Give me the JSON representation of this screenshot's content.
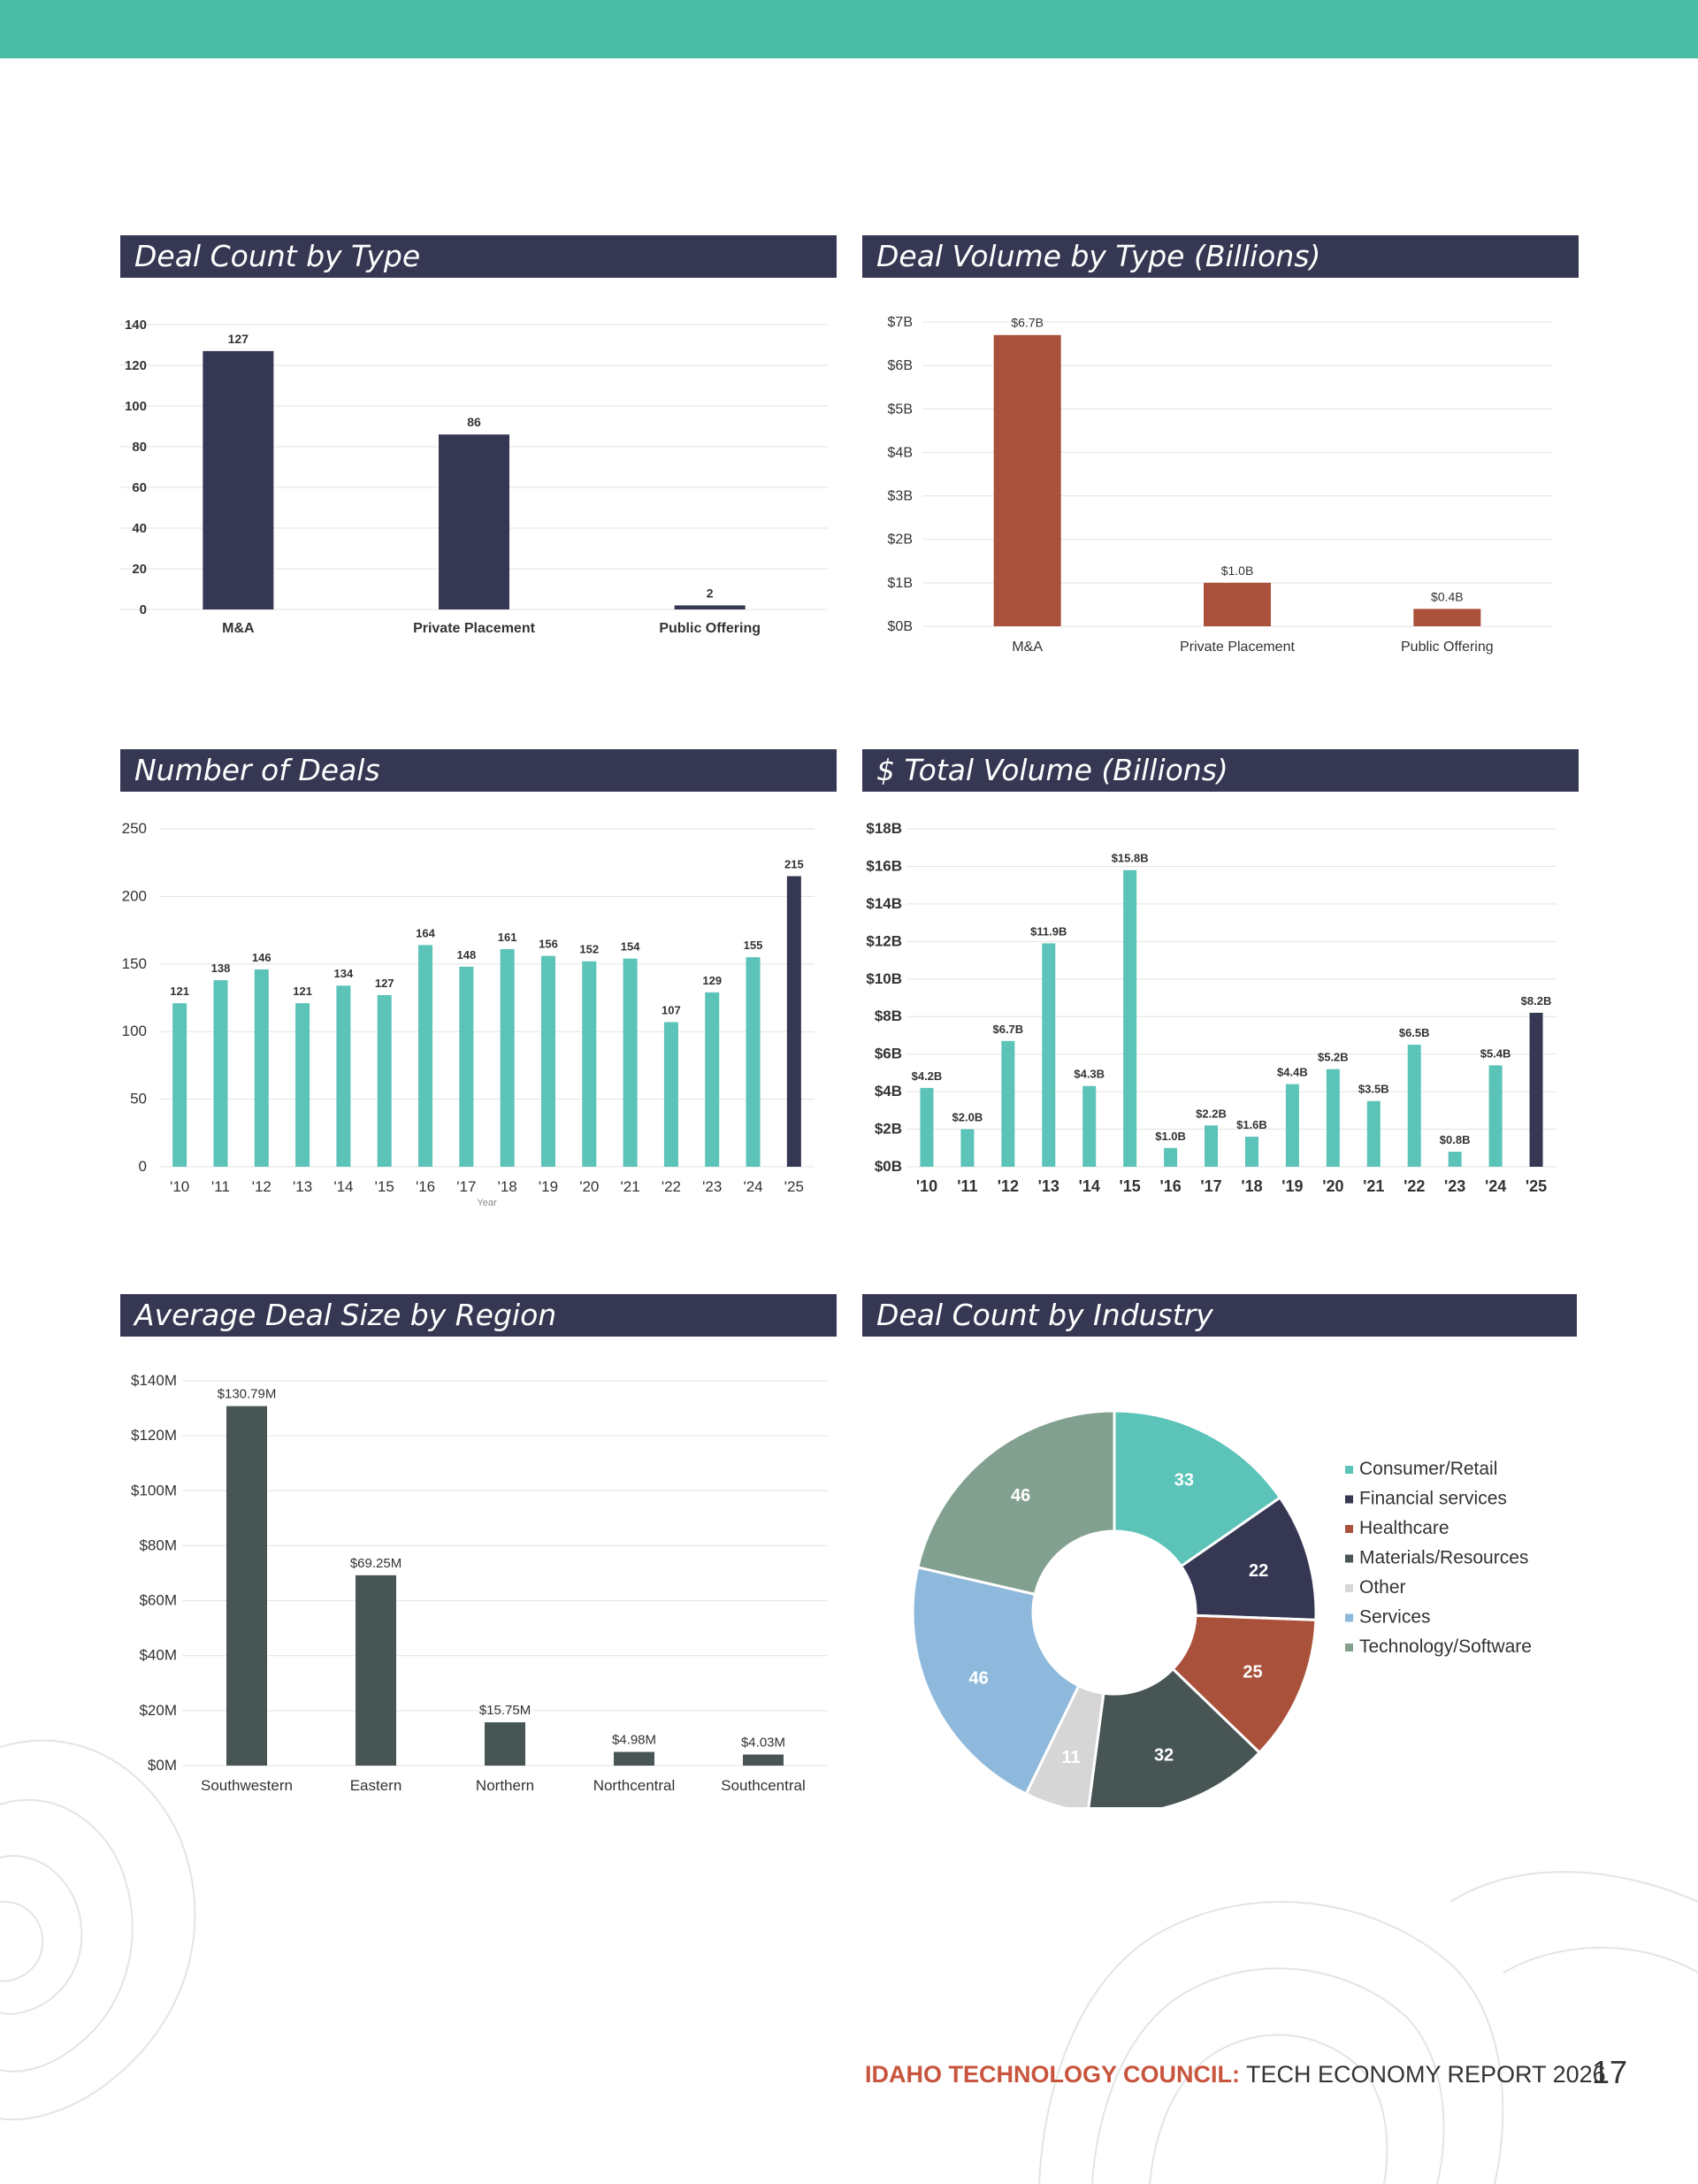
{
  "colors": {
    "teal": "#5bc3b8",
    "navy": "#363853",
    "rust": "#a9513a",
    "slate": "#485555",
    "band": "#4bbfa6"
  },
  "footer": {
    "brand": "IDAHO TECHNOLOGY COUNCIL:",
    "title": "TECH ECONOMY REPORT 2026",
    "page": "17"
  },
  "panels": {
    "deal_count_type": "Deal Count by Type",
    "deal_volume_type": "Deal Volume by Type (Billions)",
    "number_of_deals": "Number of Deals",
    "total_volume": "$ Total Volume (Billions)",
    "avg_deal_size": "Average Deal Size by Region",
    "deal_count_industry": "Deal Count by Industry"
  },
  "chart_data": [
    {
      "id": "deal_count_type",
      "type": "bar",
      "categories": [
        "M&A",
        "Private Placement",
        "Public Offering"
      ],
      "values": [
        127,
        86,
        2
      ],
      "labels": [
        "127",
        "86",
        "2"
      ],
      "yticks": [
        "0",
        "20",
        "40",
        "60",
        "80",
        "100",
        "120",
        "140"
      ],
      "ylim": [
        0,
        140
      ]
    },
    {
      "id": "deal_volume_type",
      "type": "bar",
      "categories": [
        "M&A",
        "Private Placement",
        "Public Offering"
      ],
      "values": [
        6.7,
        1.0,
        0.4
      ],
      "labels": [
        "$6.7B",
        "$1.0B",
        "$0.4B"
      ],
      "yticks": [
        "$0B",
        "$1B",
        "$2B",
        "$3B",
        "$4B",
        "$5B",
        "$6B",
        "$7B"
      ],
      "ylim": [
        0,
        7
      ]
    },
    {
      "id": "number_of_deals",
      "type": "bar",
      "categories": [
        "'10",
        "'11",
        "'12",
        "'13",
        "'14",
        "'15",
        "'16",
        "'17",
        "'18",
        "'19",
        "'20",
        "'21",
        "'22",
        "'23",
        "'24",
        "'25"
      ],
      "values": [
        121,
        138,
        146,
        121,
        134,
        127,
        164,
        148,
        161,
        156,
        152,
        154,
        107,
        129,
        155,
        215
      ],
      "labels": [
        "121",
        "138",
        "146",
        "121",
        "134",
        "127",
        "164",
        "148",
        "161",
        "156",
        "152",
        "154",
        "107",
        "129",
        "155",
        "215"
      ],
      "highlight_last": true,
      "xlabel": "Year",
      "yticks": [
        "0",
        "50",
        "100",
        "150",
        "200",
        "250"
      ],
      "ylim": [
        0,
        250
      ]
    },
    {
      "id": "total_volume",
      "type": "bar",
      "categories": [
        "'10",
        "'11",
        "'12",
        "'13",
        "'14",
        "'15",
        "'16",
        "'17",
        "'18",
        "'19",
        "'20",
        "'21",
        "'22",
        "'23",
        "'24",
        "'25"
      ],
      "values": [
        4.2,
        2.0,
        6.7,
        11.9,
        4.3,
        15.8,
        1.0,
        2.2,
        1.6,
        4.4,
        5.2,
        3.5,
        6.5,
        0.8,
        5.4,
        8.2
      ],
      "labels": [
        "$4.2B",
        "$2.0B",
        "$6.7B",
        "$11.9B",
        "$4.3B",
        "$15.8B",
        "$1.0B",
        "$2.2B",
        "$1.6B",
        "$4.4B",
        "$5.2B",
        "$3.5B",
        "$6.5B",
        "$0.8B",
        "$5.4B",
        "$8.2B"
      ],
      "highlight_last": true,
      "yticks": [
        "$0B",
        "$2B",
        "$4B",
        "$6B",
        "$8B",
        "$10B",
        "$12B",
        "$14B",
        "$16B",
        "$18B"
      ],
      "ylim": [
        0,
        18
      ]
    },
    {
      "id": "avg_deal_size",
      "type": "bar",
      "categories": [
        "Southwestern",
        "Eastern",
        "Northern",
        "Northcentral",
        "Southcentral"
      ],
      "values": [
        130.79,
        69.25,
        15.75,
        4.98,
        4.03
      ],
      "labels": [
        "$130.79M",
        "$69.25M",
        "$15.75M",
        "$4.98M",
        "$4.03M"
      ],
      "yticks": [
        "$0M",
        "$20M",
        "$40M",
        "$60M",
        "$80M",
        "$100M",
        "$120M",
        "$140M"
      ],
      "ylim": [
        0,
        140
      ]
    },
    {
      "id": "deal_count_industry",
      "type": "pie",
      "donut": true,
      "slices": [
        {
          "label": "Consumer/Retail",
          "value": 33,
          "color": "#5bc3b8"
        },
        {
          "label": "Financial services",
          "value": 22,
          "color": "#363853"
        },
        {
          "label": "Healthcare",
          "value": 25,
          "color": "#a9513a"
        },
        {
          "label": "Materials/Resources",
          "value": 32,
          "color": "#485555"
        },
        {
          "label": "Other",
          "value": 11,
          "color": "#d6d6d6"
        },
        {
          "label": "Services",
          "value": 46,
          "color": "#8fb9dc"
        },
        {
          "label": "Technology/Software",
          "value": 46,
          "color": "#82a08f"
        }
      ]
    }
  ]
}
